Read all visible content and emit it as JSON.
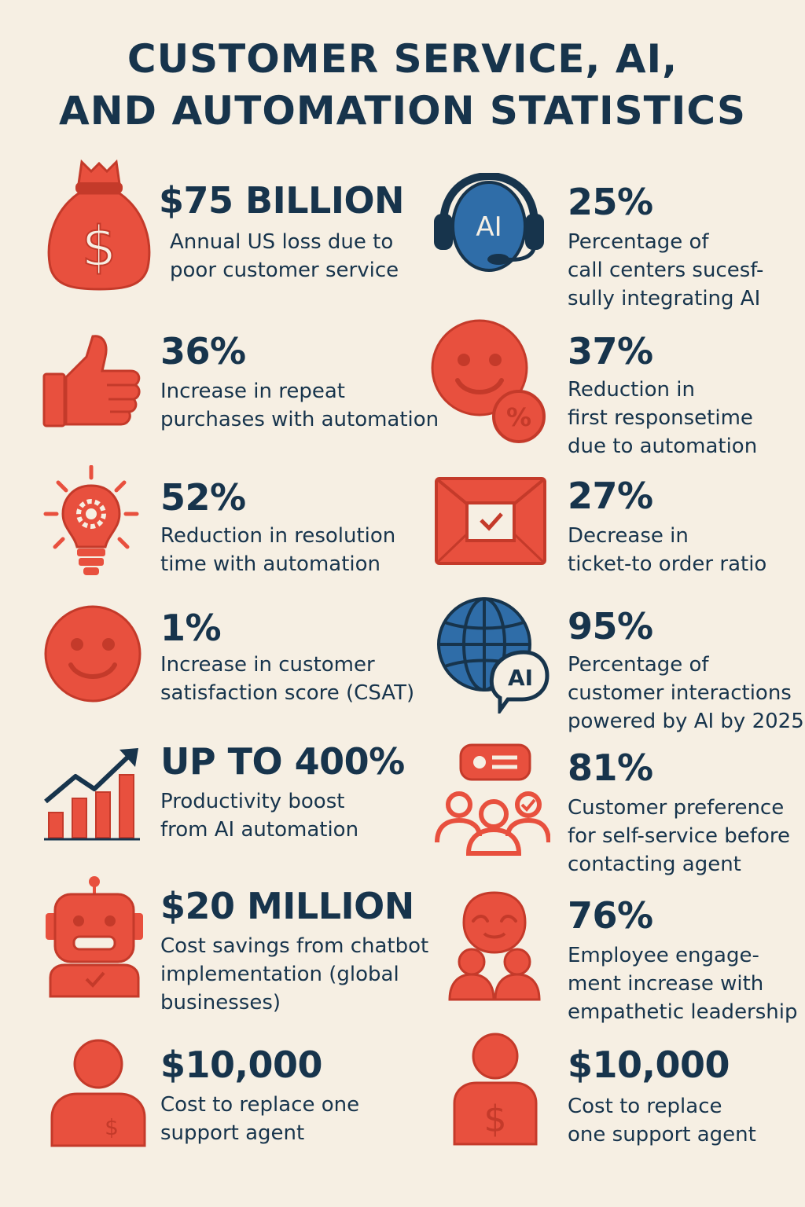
{
  "title": {
    "line1": "CUSTOMER SERVICE, AI,",
    "line2": "AND AUTOMATION STATISTICS"
  },
  "colors": {
    "accent_red": "#e8503e",
    "navy": "#17344c",
    "blue": "#2f6da8",
    "background": "#f6efe3"
  },
  "stats": [
    {
      "value": "$75 BILLION",
      "lines": [
        "Annual US loss due to",
        "poor customer service"
      ],
      "icon": "money-bag-icon"
    },
    {
      "value": "25%",
      "lines": [
        "Percentage of",
        "call centers sucesf-",
        "sully integrating AI"
      ],
      "icon": "ai-headset-icon",
      "icon_text": "AI"
    },
    {
      "value": "36%",
      "lines": [
        "Increase in repeat",
        "purchases with automation"
      ],
      "icon": "thumbs-up-icon"
    },
    {
      "value": "37%",
      "lines": [
        "Reduction in",
        "first responsetime",
        "due to automation"
      ],
      "icon": "smiley-percent-icon",
      "icon_text": "%"
    },
    {
      "value": "52%",
      "lines": [
        "Reduction in resolution",
        "time with automation"
      ],
      "icon": "lightbulb-gear-icon"
    },
    {
      "value": "27%",
      "lines": [
        "Decrease in",
        "ticket-to order ratio"
      ],
      "icon": "envelope-check-icon"
    },
    {
      "value": "1%",
      "lines": [
        "Increase in customer",
        "satisfaction score (CSAT)"
      ],
      "icon": "smiley-face-icon"
    },
    {
      "value": "95%",
      "lines": [
        "Percentage of",
        "customer interactions",
        "powered by AI by 2025"
      ],
      "icon": "globe-ai-icon",
      "icon_text": "AI"
    },
    {
      "value": "UP TO 400%",
      "lines": [
        "Productivity boost",
        "from AI automation"
      ],
      "icon": "growth-chart-icon"
    },
    {
      "value": "81%",
      "lines": [
        "Customer preference",
        "for self-service before",
        "contacting agent"
      ],
      "icon": "group-self-service-icon"
    },
    {
      "value": "$20 MILLION",
      "lines": [
        "Cost savings from chatbot",
        "implementation (global",
        "businesses)"
      ],
      "icon": "robot-icon"
    },
    {
      "value": "76%",
      "lines": [
        "Employee engage-",
        "ment increase with",
        "empathetic leadership"
      ],
      "icon": "team-leader-icon"
    },
    {
      "value": "$10,000",
      "lines": [
        "Cost to replace one",
        "support agent"
      ],
      "icon": "person-dollar-icon",
      "icon_text": "$"
    },
    {
      "value": "$10,000",
      "lines": [
        "Cost to replace",
        "one support agent"
      ],
      "icon": "person-dollar-icon",
      "icon_text": "$"
    }
  ]
}
